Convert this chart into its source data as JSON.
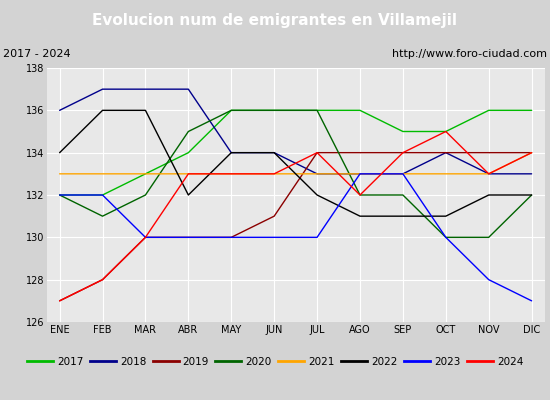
{
  "title": "Evolucion num de emigrantes en Villamejil",
  "subtitle_left": "2017 - 2024",
  "subtitle_right": "http://www.foro-ciudad.com",
  "months": [
    "ENE",
    "FEB",
    "MAR",
    "ABR",
    "MAY",
    "JUN",
    "JUL",
    "AGO",
    "SEP",
    "OCT",
    "NOV",
    "DIC"
  ],
  "ylim": [
    126,
    138
  ],
  "yticks": [
    126,
    128,
    130,
    132,
    134,
    136,
    138
  ],
  "series": {
    "2017": {
      "color": "#00bb00",
      "linestyle": "solid",
      "values": [
        132,
        132,
        133,
        134,
        136,
        136,
        136,
        136,
        135,
        135,
        136,
        136
      ]
    },
    "2018": {
      "color": "#00008b",
      "linestyle": "solid",
      "values": [
        136,
        137,
        137,
        137,
        134,
        134,
        133,
        133,
        133,
        134,
        133,
        133
      ]
    },
    "2019": {
      "color": "#8b0000",
      "linestyle": "solid",
      "values": [
        127,
        128,
        130,
        130,
        130,
        131,
        134,
        134,
        134,
        134,
        134,
        134
      ]
    },
    "2020": {
      "color": "#006400",
      "linestyle": "solid",
      "values": [
        132,
        131,
        132,
        135,
        136,
        136,
        136,
        132,
        132,
        130,
        130,
        132
      ]
    },
    "2021": {
      "color": "#ffa500",
      "linestyle": "solid",
      "values": [
        133,
        133,
        133,
        133,
        133,
        133,
        133,
        133,
        133,
        133,
        133,
        134
      ]
    },
    "2022": {
      "color": "#000000",
      "linestyle": "solid",
      "values": [
        134,
        136,
        136,
        132,
        134,
        134,
        132,
        131,
        131,
        131,
        132,
        132
      ]
    },
    "2023": {
      "color": "#0000ff",
      "linestyle": "solid",
      "values": [
        132,
        132,
        130,
        130,
        130,
        130,
        130,
        133,
        133,
        130,
        128,
        127
      ]
    },
    "2024": {
      "color": "#ff0000",
      "linestyle": "solid",
      "values": [
        127,
        128,
        130,
        133,
        133,
        133,
        134,
        132,
        134,
        135,
        133,
        134
      ]
    }
  },
  "title_bg_color": "#4472c4",
  "title_text_color": "#ffffff",
  "subtitle_bg_color": "#d3d3d3",
  "plot_bg_color": "#e8e8e8",
  "grid_color": "#ffffff",
  "legend_bg_color": "#f0f0f0",
  "legend_border_color": "#4472c4",
  "title_fontsize": 11,
  "subtitle_fontsize": 8,
  "tick_fontsize": 7,
  "legend_fontsize": 7.5,
  "linewidth": 1.0
}
